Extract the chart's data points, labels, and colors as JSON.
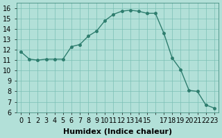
{
  "x": [
    0,
    1,
    2,
    3,
    4,
    5,
    6,
    7,
    8,
    9,
    10,
    11,
    12,
    13,
    14,
    15,
    16,
    17,
    18,
    19,
    20,
    21,
    22,
    23
  ],
  "y": [
    11.8,
    11.1,
    11.0,
    11.1,
    11.1,
    11.1,
    12.3,
    12.5,
    13.3,
    13.8,
    14.8,
    15.4,
    15.7,
    15.8,
    15.7,
    15.5,
    15.5,
    13.6,
    11.2,
    10.1,
    8.1,
    8.0,
    6.7,
    6.4
  ],
  "line_color": "#2e7d6e",
  "marker_color": "#2e7d6e",
  "bg_color": "#b2e0d8",
  "grid_color": "#7bbfb5",
  "xlabel": "Humidex (Indice chaleur)",
  "ylim": [
    6,
    16.5
  ],
  "xlim": [
    -0.5,
    23.5
  ],
  "yticks": [
    6,
    7,
    8,
    9,
    10,
    11,
    12,
    13,
    14,
    15,
    16
  ],
  "xticks": [
    0,
    1,
    2,
    3,
    4,
    5,
    6,
    7,
    8,
    9,
    10,
    11,
    12,
    13,
    14,
    15,
    16,
    17,
    18,
    19,
    20,
    21,
    22,
    23
  ],
  "xtick_labels": [
    "0",
    "1",
    "2",
    "3",
    "4",
    "5",
    "6",
    "7",
    "8",
    "9",
    "10",
    "11",
    "12",
    "13",
    "14",
    "15",
    "",
    "17",
    "18",
    "19",
    "20",
    "21",
    "22",
    "23"
  ],
  "font_size": 7,
  "label_font_size": 8
}
